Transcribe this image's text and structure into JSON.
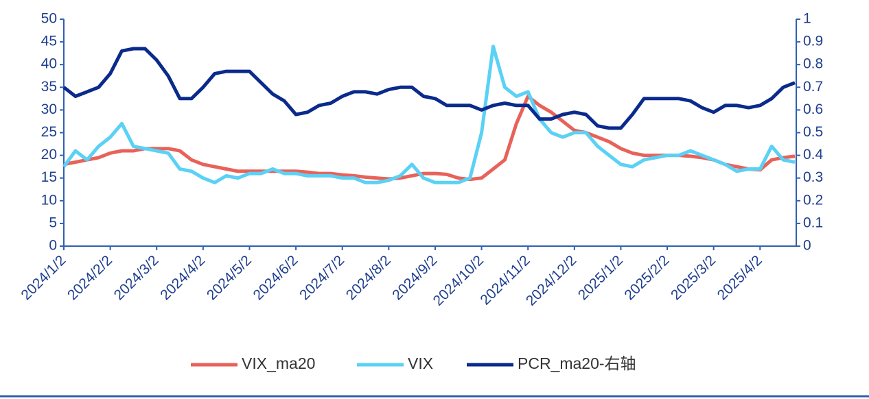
{
  "chart_data": {
    "type": "line",
    "categories": [
      "2024/1/2",
      null,
      null,
      null,
      "2024/2/2",
      null,
      null,
      null,
      "2024/3/2",
      null,
      null,
      null,
      "2024/4/2",
      null,
      null,
      null,
      "2024/5/2",
      null,
      null,
      null,
      "2024/6/2",
      null,
      null,
      null,
      "2024/7/2",
      null,
      null,
      null,
      "2024/8/2",
      null,
      null,
      null,
      "2024/9/2",
      null,
      null,
      null,
      "2024/10/2",
      null,
      null,
      null,
      "2024/11/2",
      null,
      null,
      null,
      "2024/12/2",
      null,
      null,
      null,
      "2025/1/2",
      null,
      null,
      null,
      "2025/2/2",
      null,
      null,
      null,
      "2025/3/2",
      null,
      null,
      null,
      "2025/4/2",
      null,
      null,
      null
    ],
    "series": [
      {
        "name": "VIX_ma20",
        "color": "#e8625a",
        "values": [
          18,
          18.5,
          19,
          19.5,
          20.5,
          21,
          21,
          21.5,
          21.5,
          21.5,
          21,
          19,
          18,
          17.5,
          17,
          16.5,
          16.5,
          16.5,
          16.5,
          16.5,
          16.5,
          16.3,
          16,
          16,
          15.7,
          15.5,
          15.2,
          15,
          14.8,
          15,
          15.5,
          16,
          16,
          15.8,
          15,
          14.7,
          15,
          17,
          19,
          27,
          33,
          31,
          29.5,
          27.5,
          25.5,
          25,
          24,
          23,
          21.5,
          20.5,
          20,
          20,
          20,
          20,
          19.8,
          19.5,
          19,
          18,
          17.5,
          17,
          16.8,
          19,
          19.5,
          19.8
        ]
      },
      {
        "name": "VIX",
        "color": "#5ad1f5",
        "values": [
          17.5,
          21,
          19,
          22,
          24,
          27,
          22,
          21.5,
          21,
          20.5,
          17,
          16.5,
          15,
          14,
          15.5,
          15,
          16,
          16,
          17,
          16,
          16,
          15.5,
          15.5,
          15.5,
          15,
          15,
          14,
          14,
          14.5,
          15.5,
          18,
          15,
          14,
          14,
          14,
          15,
          25,
          44,
          35,
          33,
          34,
          28,
          25,
          24,
          25,
          25,
          22,
          20,
          18,
          17.5,
          19,
          19.5,
          20,
          20,
          21,
          20,
          19,
          18,
          16.5,
          17,
          17,
          22,
          19,
          18.5
        ]
      },
      {
        "name": "PCR_ma20-右轴",
        "color": "#0a2a8c",
        "axis": "y2",
        "values": [
          0.7,
          0.66,
          0.68,
          0.7,
          0.76,
          0.86,
          0.87,
          0.87,
          0.82,
          0.75,
          0.65,
          0.65,
          0.7,
          0.76,
          0.77,
          0.77,
          0.77,
          0.72,
          0.67,
          0.64,
          0.58,
          0.59,
          0.62,
          0.63,
          0.66,
          0.68,
          0.68,
          0.67,
          0.69,
          0.7,
          0.7,
          0.66,
          0.65,
          0.62,
          0.62,
          0.62,
          0.6,
          0.62,
          0.63,
          0.62,
          0.62,
          0.56,
          0.56,
          0.58,
          0.59,
          0.58,
          0.53,
          0.52,
          0.52,
          0.58,
          0.65,
          0.65,
          0.65,
          0.65,
          0.64,
          0.61,
          0.59,
          0.62,
          0.62,
          0.61,
          0.62,
          0.65,
          0.7,
          0.72
        ]
      }
    ],
    "ylim": [
      0,
      50
    ],
    "yticks": [
      0,
      5,
      10,
      15,
      20,
      25,
      30,
      35,
      40,
      45,
      50
    ],
    "y2lim": [
      0,
      1
    ],
    "y2ticks": [
      0,
      0.1,
      0.2,
      0.3,
      0.4,
      0.5,
      0.6,
      0.7,
      0.8,
      0.9,
      1
    ],
    "legend": "bottom"
  }
}
